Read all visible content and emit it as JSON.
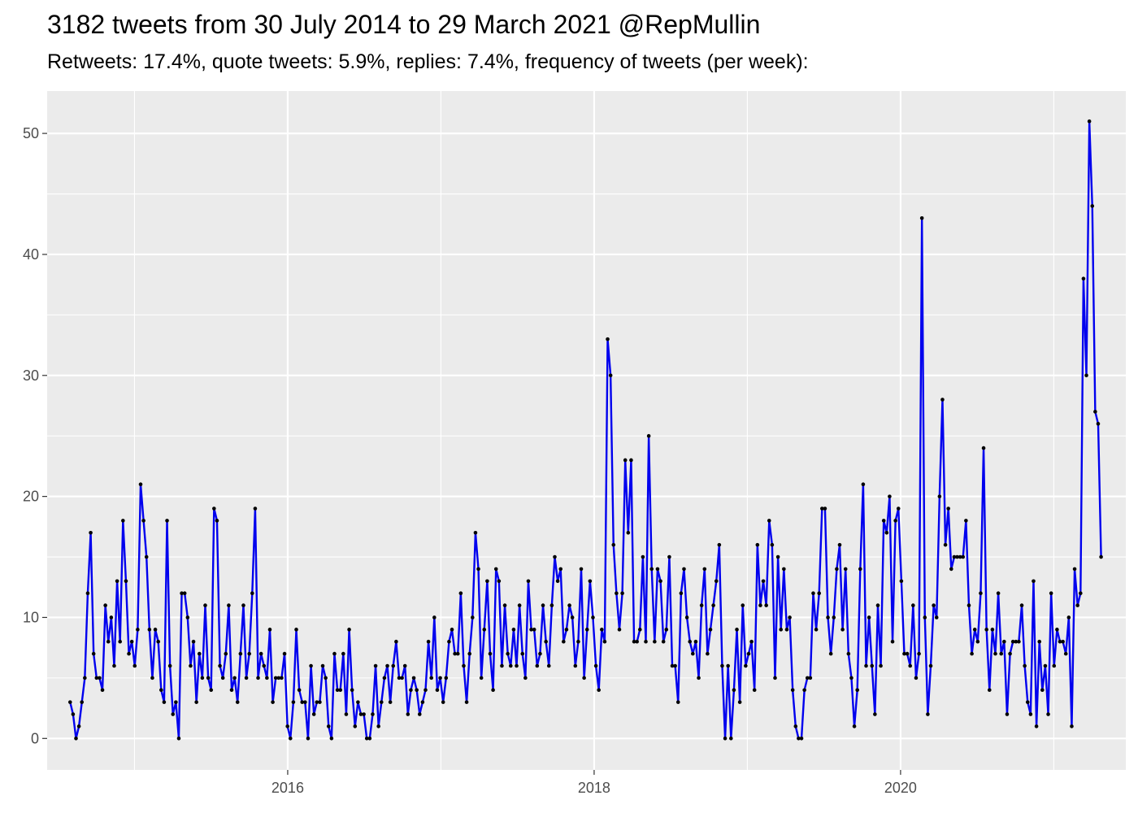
{
  "chart_data": {
    "type": "line",
    "title": "3182 tweets from 30 July 2014 to 29 March 2021 @RepMullin",
    "subtitle": "Retweets: 17.4%, quote tweets: 5.9%, replies: 7.4%, frequency of tweets (per week):",
    "xlabel": "",
    "ylabel": "",
    "x_ticks": [
      "2016",
      "2018",
      "2020"
    ],
    "y_ticks": [
      "0",
      "10",
      "20",
      "30",
      "40",
      "50"
    ],
    "xlim": [
      2014.43,
      2021.47
    ],
    "ylim": [
      -2.6,
      53.5
    ],
    "grid": true,
    "x_start": 2014.58,
    "x_step_years": 0.01917,
    "values": [
      3,
      2,
      0,
      1,
      3,
      5,
      12,
      17,
      7,
      5,
      5,
      4,
      11,
      8,
      10,
      6,
      13,
      8,
      18,
      13,
      7,
      8,
      6,
      9,
      21,
      18,
      15,
      9,
      5,
      9,
      8,
      4,
      3,
      18,
      6,
      2,
      3,
      0,
      12,
      12,
      10,
      6,
      8,
      3,
      7,
      5,
      11,
      5,
      4,
      19,
      18,
      6,
      5,
      7,
      11,
      4,
      5,
      3,
      7,
      11,
      5,
      7,
      12,
      19,
      5,
      7,
      6,
      5,
      9,
      3,
      5,
      5,
      5,
      7,
      1,
      0,
      3,
      9,
      4,
      3,
      3,
      0,
      6,
      2,
      3,
      3,
      6,
      5,
      1,
      0,
      7,
      4,
      4,
      7,
      2,
      9,
      4,
      1,
      3,
      2,
      2,
      0,
      0,
      2,
      6,
      1,
      3,
      5,
      6,
      3,
      6,
      8,
      5,
      5,
      6,
      2,
      4,
      5,
      4,
      2,
      3,
      4,
      8,
      5,
      10,
      4,
      5,
      3,
      5,
      8,
      9,
      7,
      7,
      12,
      6,
      3,
      7,
      10,
      17,
      14,
      5,
      9,
      13,
      7,
      4,
      14,
      13,
      6,
      11,
      7,
      6,
      9,
      6,
      11,
      7,
      5,
      13,
      9,
      9,
      6,
      7,
      11,
      8,
      6,
      11,
      15,
      13,
      14,
      8,
      9,
      11,
      10,
      6,
      8,
      14,
      5,
      9,
      13,
      10,
      6,
      4,
      9,
      8,
      33,
      30,
      16,
      12,
      9,
      12,
      23,
      17,
      23,
      8,
      8,
      9,
      15,
      8,
      25,
      14,
      8,
      14,
      13,
      8,
      9,
      15,
      6,
      6,
      3,
      12,
      14,
      10,
      8,
      7,
      8,
      5,
      11,
      14,
      7,
      9,
      11,
      13,
      16,
      6,
      0,
      6,
      0,
      4,
      9,
      3,
      11,
      6,
      7,
      8,
      4,
      16,
      11,
      13,
      11,
      18,
      16,
      5,
      15,
      9,
      14,
      9,
      10,
      4,
      1,
      0,
      0,
      4,
      5,
      5,
      12,
      9,
      12,
      19,
      19,
      10,
      7,
      10,
      14,
      16,
      9,
      14,
      7,
      5,
      1,
      4,
      14,
      21,
      6,
      10,
      6,
      2,
      11,
      6,
      18,
      17,
      20,
      8,
      18,
      19,
      13,
      7,
      7,
      6,
      11,
      5,
      7,
      43,
      10,
      2,
      6,
      11,
      10,
      20,
      28,
      16,
      19,
      14,
      15,
      15,
      15,
      15,
      18,
      11,
      7,
      9,
      8,
      12,
      24,
      9,
      4,
      9,
      7,
      12,
      7,
      8,
      2,
      7,
      8,
      8,
      8,
      11,
      6,
      3,
      2,
      13,
      1,
      8,
      4,
      6,
      2,
      12,
      6,
      9,
      8,
      8,
      7,
      10,
      1,
      14,
      11,
      12,
      38,
      30,
      51,
      44,
      27,
      26,
      15
    ],
    "series_color": "#0000ee",
    "point_color": "#000000",
    "panel_color": "#ebebeb",
    "grid_color": "#ffffff"
  }
}
